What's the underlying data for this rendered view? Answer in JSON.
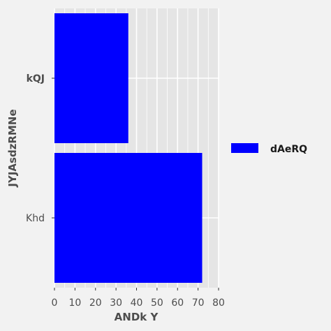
{
  "chart_data": {
    "type": "bar",
    "orientation": "horizontal",
    "title": "",
    "xlabel": "ANDk Y",
    "ylabel": "JYJAsdzRMNe",
    "categories": [
      "Khd",
      "kQJ"
    ],
    "category_label_bold": [
      false,
      true
    ],
    "series": [
      {
        "name": "dAeRQ",
        "values": [
          72,
          36
        ],
        "color": "#0000ff"
      }
    ],
    "xlim": [
      0,
      80
    ],
    "xticks": [
      0,
      10,
      20,
      30,
      40,
      50,
      60,
      70,
      80
    ],
    "grid": true,
    "legend_position": "right",
    "colors": {
      "panel": "#e5e5e5",
      "grid": "#ffffff",
      "background": "#f2f2f2",
      "text": "#4d4d4d"
    }
  }
}
